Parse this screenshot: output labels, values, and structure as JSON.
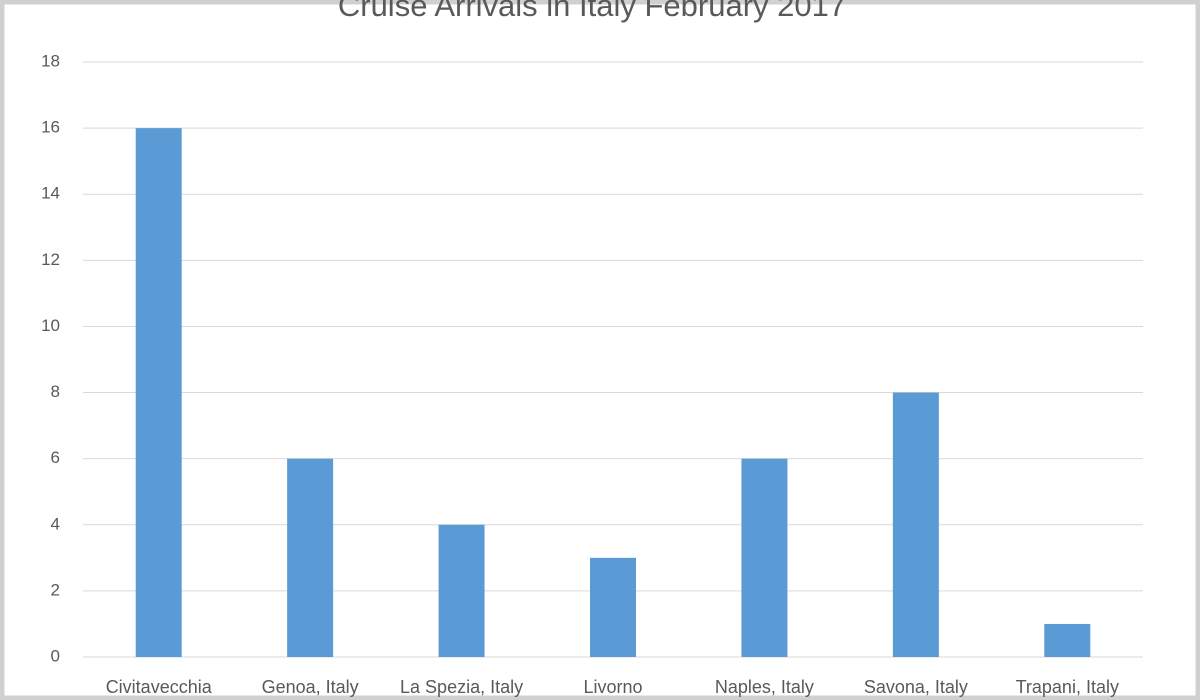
{
  "chart_data": {
    "type": "bar",
    "title": "Cruise Arrivals in Italy February 2017",
    "categories": [
      "Civitavecchia",
      "Genoa, Italy",
      "La Spezia, Italy",
      "Livorno",
      "Naples, Italy",
      "Savona, Italy",
      "Trapani, Italy"
    ],
    "values": [
      16,
      6,
      4,
      3,
      6,
      8,
      1
    ],
    "color": "#5b9bd5",
    "ylim": [
      0,
      18
    ],
    "yticks": [
      0,
      2,
      4,
      6,
      8,
      10,
      12,
      14,
      16,
      18
    ],
    "grid": true
  }
}
